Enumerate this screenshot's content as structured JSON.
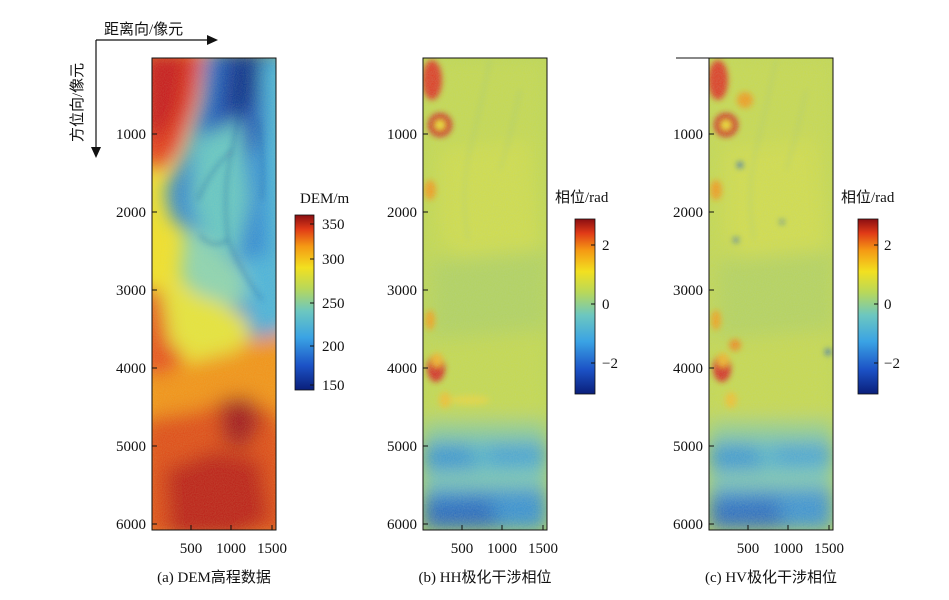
{
  "axes": {
    "range_label": "距离向/像元",
    "azimuth_label": "方位向/像元"
  },
  "y_ticks": [
    "1000",
    "2000",
    "3000",
    "4000",
    "5000",
    "6000"
  ],
  "x_ticks": [
    "500",
    "1000",
    "1500"
  ],
  "panels": [
    {
      "id": "dem",
      "caption": "(a) DEM高程数据",
      "colorbar_title": "DEM/m",
      "colorbar_ticks": [
        "350",
        "300",
        "250",
        "200",
        "150"
      ]
    },
    {
      "id": "hh",
      "caption": "(b) HH极化干涉相位",
      "colorbar_title": "相位/rad",
      "colorbar_ticks": [
        "2",
        "0",
        "−2"
      ]
    },
    {
      "id": "hv",
      "caption": "(c) HV极化干涉相位",
      "colorbar_title": "相位/rad",
      "colorbar_ticks": [
        "2",
        "0",
        "−2"
      ]
    }
  ],
  "colormap": "jet"
}
